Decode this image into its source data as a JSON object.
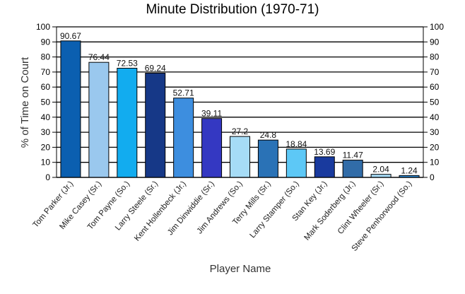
{
  "chart_data": {
    "type": "bar",
    "title": "Minute Distribution (1970-71)",
    "xlabel": "Player Name",
    "ylabel": "% of Time on Court",
    "ylim": [
      0,
      100
    ],
    "yticks": [
      0,
      10,
      20,
      30,
      40,
      50,
      60,
      70,
      80,
      90,
      100
    ],
    "y_axis_mirrored_right": true,
    "grid": true,
    "categories": [
      "Tom Parker (Jr.)",
      "Mike Casey (Sr.)",
      "Tom Payne (So.)",
      "Larry Steele (Sr.)",
      "Kent Hollenbeck (Jr.)",
      "Jim Dinwiddie (Sr.)",
      "Jim Andrews (So.)",
      "Terry Mills (Sr.)",
      "Larry Stamper (So.)",
      "Stan Key (Jr.)",
      "Mark Soderberg (Jr.)",
      "Clint Wheeler (Sr.)",
      "Steve Penhorwood (So.)"
    ],
    "values": [
      90.67,
      76.44,
      72.53,
      69.24,
      52.71,
      39.11,
      27.2,
      24.8,
      18.84,
      13.69,
      11.47,
      2.04,
      1.24
    ],
    "value_labels": [
      "90.67",
      "76.44",
      "72.53",
      "69.24",
      "52.71",
      "39.11",
      "27.2",
      "24.8",
      "18.84",
      "13.69",
      "11.47",
      "2.04",
      "1.24"
    ],
    "colors": [
      "#0b5fb0",
      "#9ac8ee",
      "#12acef",
      "#163887",
      "#3d8edf",
      "#3438c2",
      "#a6dcf6",
      "#2a72b6",
      "#5dc8f6",
      "#193a9e",
      "#316ca8",
      "#a6dbf6",
      "#2d8ddc"
    ]
  }
}
